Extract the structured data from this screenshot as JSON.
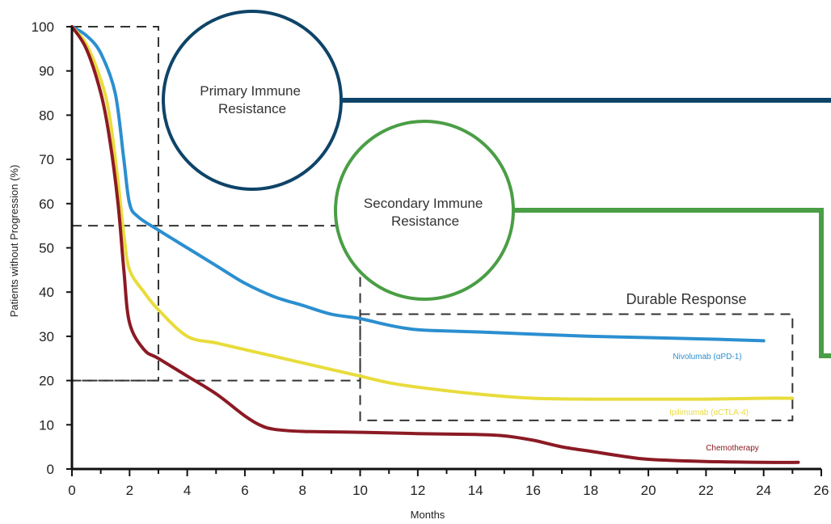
{
  "chart_data": {
    "type": "line",
    "xlabel": "Months",
    "ylabel": "Patients without Progression (%)",
    "xlim": [
      0,
      26
    ],
    "ylim": [
      0,
      100
    ],
    "xticks": [
      0,
      2,
      4,
      6,
      8,
      10,
      12,
      14,
      16,
      18,
      20,
      22,
      24,
      26
    ],
    "yticks": [
      0,
      10,
      20,
      30,
      40,
      50,
      60,
      70,
      80,
      90,
      100
    ],
    "grid": false,
    "series": [
      {
        "name": "Nivolumab (αPD-1)",
        "color": "#2b8fd0",
        "points": [
          [
            0,
            100
          ],
          [
            0.5,
            98
          ],
          [
            1,
            94
          ],
          [
            1.5,
            85
          ],
          [
            1.8,
            70
          ],
          [
            2,
            60
          ],
          [
            2.3,
            57
          ],
          [
            3,
            54
          ],
          [
            4,
            50
          ],
          [
            5,
            46
          ],
          [
            6,
            42
          ],
          [
            7,
            39
          ],
          [
            8,
            37
          ],
          [
            9,
            35
          ],
          [
            10,
            34
          ],
          [
            11,
            32.5
          ],
          [
            12,
            31.5
          ],
          [
            14,
            31
          ],
          [
            16,
            30.5
          ],
          [
            18,
            30
          ],
          [
            20,
            29.7
          ],
          [
            22,
            29.4
          ],
          [
            24,
            29
          ]
        ]
      },
      {
        "name": "Ipilimumab (αCTLA-4)",
        "color": "#e8dc3c",
        "points": [
          [
            0,
            100
          ],
          [
            0.5,
            96
          ],
          [
            1,
            88
          ],
          [
            1.3,
            80
          ],
          [
            1.6,
            65
          ],
          [
            1.8,
            53
          ],
          [
            2,
            45
          ],
          [
            2.5,
            40
          ],
          [
            3,
            36
          ],
          [
            4,
            30
          ],
          [
            5,
            28.5
          ],
          [
            6,
            27
          ],
          [
            7,
            25.5
          ],
          [
            8,
            24
          ],
          [
            9,
            22.5
          ],
          [
            10,
            21
          ],
          [
            11,
            19.5
          ],
          [
            12,
            18.5
          ],
          [
            14,
            17
          ],
          [
            16,
            16
          ],
          [
            18,
            15.8
          ],
          [
            20,
            15.8
          ],
          [
            22,
            15.8
          ],
          [
            24,
            16
          ],
          [
            25,
            16
          ]
        ]
      },
      {
        "name": "Chemotherapy",
        "color": "#8b1a24",
        "points": [
          [
            0,
            100
          ],
          [
            0.5,
            95
          ],
          [
            1,
            85
          ],
          [
            1.3,
            75
          ],
          [
            1.6,
            60
          ],
          [
            1.8,
            45
          ],
          [
            2,
            33
          ],
          [
            2.5,
            27
          ],
          [
            3,
            25
          ],
          [
            4,
            21
          ],
          [
            5,
            17
          ],
          [
            6,
            12
          ],
          [
            6.5,
            10
          ],
          [
            7,
            9
          ],
          [
            8,
            8.5
          ],
          [
            10,
            8.3
          ],
          [
            12,
            8
          ],
          [
            14,
            7.8
          ],
          [
            15,
            7.5
          ],
          [
            16,
            6.5
          ],
          [
            17,
            5
          ],
          [
            18,
            4
          ],
          [
            19,
            3
          ],
          [
            20,
            2.2
          ],
          [
            22,
            1.7
          ],
          [
            24,
            1.5
          ],
          [
            25.2,
            1.5
          ]
        ]
      }
    ],
    "annotations": {
      "primary": "Primary Immune\nResistance",
      "secondary": "Secondary Immune\nResistance",
      "durable": "Durable Response"
    },
    "regions": [
      {
        "name": "primary-region",
        "x": [
          0,
          3
        ],
        "y": [
          20,
          100
        ]
      },
      {
        "name": "secondary-region",
        "x": [
          0,
          10
        ],
        "y": [
          20,
          55
        ]
      },
      {
        "name": "durable-region",
        "x": [
          10,
          25
        ],
        "y": [
          11,
          35
        ]
      }
    ],
    "colors": {
      "primary_circle": "#0e4468",
      "secondary_circle": "#4a9e45",
      "box": "#333333",
      "axis": "#111111"
    }
  }
}
